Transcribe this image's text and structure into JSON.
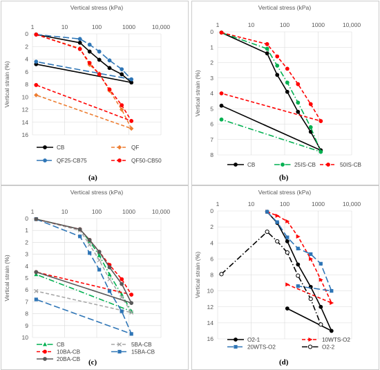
{
  "panels": [
    {
      "letter": "(a)"
    },
    {
      "letter": "(b)"
    },
    {
      "letter": "(c)"
    },
    {
      "letter": "(d)"
    }
  ],
  "chart_data": [
    {
      "type": "line",
      "id": "a",
      "xlabel": "Vertical stress (kPa)",
      "ylabel": "Vertical strain (%)",
      "xscale": "log",
      "xlim": [
        1,
        10000
      ],
      "ylim": [
        16,
        0
      ],
      "y_reversed": true,
      "x_position": "top",
      "x_ticks": [
        "1",
        "10",
        "100",
        "1000",
        "10,000"
      ],
      "y_ticks": [
        "0",
        "2",
        "4",
        "6",
        "8",
        "10",
        "12",
        "14",
        "16"
      ],
      "legend_position": "bottom",
      "series": [
        {
          "name": "CB",
          "color": "#000000",
          "dash": "solid",
          "marker": "circle-filled",
          "x": [
            1.3,
            30,
            60,
            120,
            250,
            600,
            1200,
            1.3
          ],
          "y": [
            0.1,
            1.4,
            2.8,
            4.1,
            5.4,
            6.4,
            7.7,
            4.8
          ]
        },
        {
          "name": "QF",
          "color": "#ed7d31",
          "dash": "dash",
          "marker": "diamond-filled",
          "x": [
            1.3,
            30,
            60,
            120,
            250,
            600,
            1200,
            1.3
          ],
          "y": [
            0.1,
            2.3,
            4.9,
            6.3,
            9.0,
            12.0,
            15.0,
            9.7
          ]
        },
        {
          "name": "QF25-CB75",
          "color": "#2e75b6",
          "dash": "longdash",
          "marker": "circle-filled",
          "x": [
            1.3,
            30,
            60,
            120,
            250,
            600,
            1200,
            1.3
          ],
          "y": [
            0.1,
            0.8,
            1.7,
            2.8,
            4.2,
            5.6,
            7.2,
            4.4
          ]
        },
        {
          "name": "QF50-CB50",
          "color": "#ff0000",
          "dash": "dash",
          "marker": "circle-filled",
          "x": [
            1.3,
            30,
            60,
            120,
            250,
            600,
            1200,
            1.3
          ],
          "y": [
            0.1,
            2.4,
            4.6,
            6.4,
            8.8,
            11.3,
            13.8,
            8.1
          ]
        }
      ]
    },
    {
      "type": "line",
      "id": "b",
      "xlabel": "Vertical stress (kPa)",
      "ylabel": "Vertical strain (%)",
      "xscale": "log",
      "xlim": [
        1,
        10000
      ],
      "ylim": [
        8,
        0
      ],
      "y_reversed": true,
      "x_position": "top",
      "x_ticks": [
        "1",
        "10",
        "100",
        "1000",
        "10,000"
      ],
      "y_ticks": [
        "0",
        "1",
        "2",
        "3",
        "4",
        "5",
        "6",
        "7",
        "8"
      ],
      "legend_position": "bottom",
      "series": [
        {
          "name": "CB",
          "color": "#000000",
          "dash": "solid",
          "marker": "circle-filled",
          "x": [
            1.3,
            30,
            60,
            120,
            250,
            600,
            1200,
            1.3
          ],
          "y": [
            0.05,
            1.4,
            2.8,
            3.9,
            5.2,
            6.5,
            7.7,
            4.8
          ]
        },
        {
          "name": "25IS-CB",
          "color": "#00b050",
          "dash": "dashdot",
          "marker": "circle-filled",
          "x": [
            1.3,
            30,
            60,
            120,
            250,
            600,
            1200,
            1.3
          ],
          "y": [
            0.05,
            1.1,
            2.2,
            3.3,
            4.6,
            6.2,
            7.8,
            5.7
          ]
        },
        {
          "name": "50IS-CB",
          "color": "#ff0000",
          "dash": "dash",
          "marker": "circle-filled",
          "x": [
            1.3,
            30,
            60,
            120,
            250,
            600,
            1200,
            1.3
          ],
          "y": [
            0.05,
            0.8,
            1.6,
            2.4,
            3.4,
            4.7,
            5.8,
            4.0
          ]
        }
      ]
    },
    {
      "type": "line",
      "id": "c",
      "xlabel": "Vertical stress (kPa)",
      "ylabel": "Vertical strain (%)",
      "xscale": "log",
      "xlim": [
        1,
        10000
      ],
      "ylim": [
        10,
        0
      ],
      "y_reversed": true,
      "x_position": "top",
      "x_ticks": [
        "1",
        "10",
        "100",
        "1000",
        "10,000"
      ],
      "y_ticks": [
        "0",
        "1",
        "2",
        "3",
        "4",
        "5",
        "6",
        "7",
        "8",
        "9",
        "10"
      ],
      "legend_position": "bottom",
      "series": [
        {
          "name": "CB",
          "color": "#00b050",
          "dash": "dashdot",
          "marker": "triangle-filled",
          "x": [
            1.3,
            30,
            60,
            120,
            250,
            600,
            1200,
            1.3
          ],
          "y": [
            0.05,
            0.9,
            1.9,
            3.1,
            4.7,
            6.4,
            7.8,
            4.7
          ]
        },
        {
          "name": "5BA-CB",
          "color": "#a6a6a6",
          "dash": "dash",
          "marker": "x",
          "x": [
            1.3,
            30,
            60,
            120,
            250,
            600,
            1200,
            1.3
          ],
          "y": [
            0.05,
            1.0,
            2.2,
            3.5,
            5.1,
            6.6,
            7.9,
            6.1
          ]
        },
        {
          "name": "10BA-CB",
          "color": "#ff0000",
          "dash": "dash",
          "marker": "circle-filled",
          "x": [
            1.3,
            30,
            60,
            120,
            250,
            600,
            1200,
            1.3
          ],
          "y": [
            0.05,
            0.9,
            1.8,
            2.8,
            3.9,
            5.1,
            6.4,
            4.5
          ]
        },
        {
          "name": "15BA-CB",
          "color": "#2e75b6",
          "dash": "longdash",
          "marker": "square-filled",
          "x": [
            1.3,
            30,
            60,
            120,
            250,
            600,
            1200,
            1.3
          ],
          "y": [
            0.05,
            1.5,
            2.9,
            4.3,
            6.1,
            7.8,
            9.7,
            6.8
          ]
        },
        {
          "name": "20BA-CB",
          "color": "#595959",
          "dash": "solid",
          "marker": "circle-filled",
          "x": [
            1.3,
            30,
            60,
            120,
            250,
            600,
            1200,
            1.3
          ],
          "y": [
            0.05,
            0.9,
            1.8,
            2.8,
            4.1,
            5.5,
            7.1,
            4.5
          ]
        }
      ]
    },
    {
      "type": "line",
      "id": "d",
      "xlabel": "Vertical stress (kPa)",
      "ylabel": "Vertical strain (%)",
      "xscale": "log",
      "xlim": [
        1,
        10000
      ],
      "ylim": [
        16,
        0
      ],
      "y_reversed": true,
      "x_position": "top",
      "x_ticks": [
        "1",
        "10",
        "100",
        "1000",
        "10,000"
      ],
      "y_ticks": [
        "0",
        "2",
        "4",
        "6",
        "8",
        "10",
        "12",
        "14",
        "16"
      ],
      "legend_position": "bottom",
      "series": [
        {
          "name": "O2-1",
          "color": "#000000",
          "dash": "solid",
          "marker": "circle-filled",
          "x": [
            30,
            60,
            120,
            250,
            600,
            1200,
            2500,
            120
          ],
          "y": [
            0.1,
            1.5,
            3.8,
            6.7,
            9.5,
            12.0,
            15.0,
            12.2
          ]
        },
        {
          "name": "10WTS-O2",
          "color": "#ff0000",
          "dash": "dash",
          "marker": "arrow",
          "x": [
            30,
            60,
            120,
            250,
            600,
            1200,
            2500,
            120
          ],
          "y": [
            0.1,
            0.6,
            1.3,
            3.2,
            6.0,
            8.6,
            11.5,
            9.2
          ]
        },
        {
          "name": "20WTS-O2",
          "color": "#2e75b6",
          "dash": "longdash",
          "marker": "square-filled",
          "x": [
            30,
            60,
            120,
            250,
            600,
            1200,
            2500,
            250
          ],
          "y": [
            0.1,
            1.4,
            3.3,
            4.7,
            5.4,
            6.6,
            10.0,
            9.4
          ]
        },
        {
          "name": "O2-2",
          "color": "#000000",
          "dash": "dashdot",
          "marker": "circle-open",
          "x": [
            1.3,
            30,
            60,
            120,
            250,
            600,
            1200
          ],
          "y": [
            7.9,
            2.6,
            3.8,
            5.2,
            8.1,
            11.0,
            14.2
          ]
        }
      ]
    }
  ]
}
